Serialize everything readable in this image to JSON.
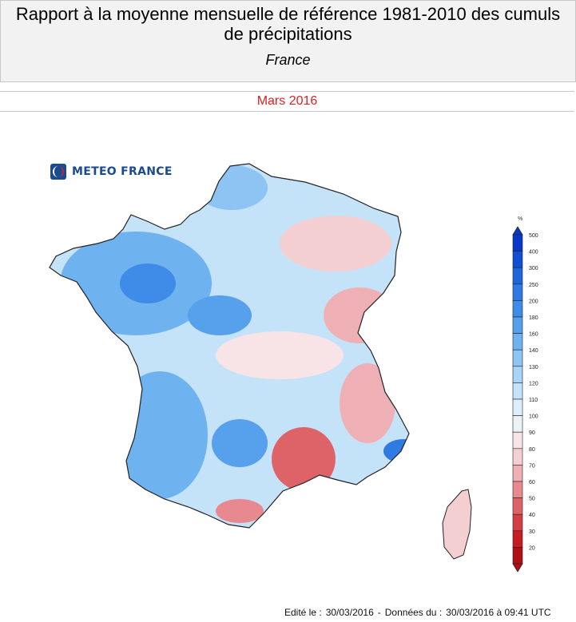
{
  "header": {
    "title_line1": "Rapport à la moyenne mensuelle de référence 1981-2010 des cumuls",
    "title_line2": "de précipitations",
    "region": "France"
  },
  "period": "Mars 2016",
  "logo": {
    "text": "METEO FRANCE",
    "icon": "meteo-france-logo-icon"
  },
  "legend": {
    "unit": "%",
    "levels": [
      "500",
      "400",
      "300",
      "250",
      "200",
      "180",
      "160",
      "140",
      "130",
      "120",
      "110",
      "100",
      "90",
      "80",
      "70",
      "60",
      "50",
      "40",
      "30",
      "20"
    ],
    "colors": [
      "#0838c8",
      "#0f4fd6",
      "#1f66de",
      "#2f7ae3",
      "#3f8ce8",
      "#56a0ec",
      "#6fb2f0",
      "#8dc4f3",
      "#a9d4f6",
      "#c4e2f8",
      "#dbeefa",
      "#ecf2f6",
      "#f8e4e6",
      "#f4cfd2",
      "#eeb0b5",
      "#e7898f",
      "#de6369",
      "#d43e45",
      "#c61d24",
      "#b00f15"
    ]
  },
  "footer": {
    "edited_label": "Edité le :",
    "edited_date": "30/03/2016",
    "separator": "-",
    "data_label": "Données du :",
    "data_date": "30/03/2016 à 09:41 UTC"
  }
}
